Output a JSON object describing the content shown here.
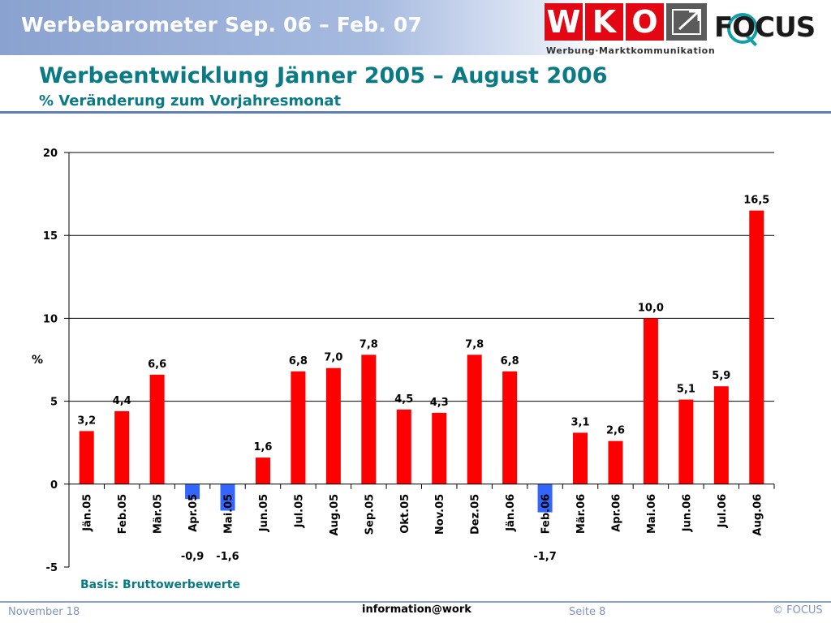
{
  "header": {
    "title": "Werbebarometer Sep. 06 – Feb. 07",
    "wko_logo_text": "WKO",
    "wko_tagline": "Werbung·Marktkommunikation",
    "focus_logo_text": "FOCUS"
  },
  "colors": {
    "positive": "#ff0000",
    "negative": "#3366ff",
    "title": "#0a7a85",
    "header_band": "#8aa2cf"
  },
  "chart_data": {
    "type": "bar",
    "title": "Werbeentwicklung Jänner 2005 – August 2006",
    "subtitle": "% Veränderung zum Vorjahresmonat",
    "ylabel": "%",
    "xlabel": "",
    "ylim": [
      -5,
      20
    ],
    "yticks": [
      -5,
      0,
      5,
      10,
      15,
      20
    ],
    "grid": true,
    "categories": [
      "Jän.05",
      "Feb.05",
      "Mär.05",
      "Apr.05",
      "Mai.05",
      "Jun.05",
      "Jul.05",
      "Aug.05",
      "Sep.05",
      "Okt.05",
      "Nov.05",
      "Dez.05",
      "Jän.06",
      "Feb.06",
      "Mär.06",
      "Apr.06",
      "Mai.06",
      "Jun.06",
      "Jul.06",
      "Aug.06"
    ],
    "values": [
      3.2,
      4.4,
      6.6,
      -0.9,
      -1.6,
      1.6,
      6.8,
      7.0,
      7.8,
      4.5,
      4.3,
      7.8,
      6.8,
      -1.7,
      3.1,
      2.6,
      10.0,
      5.1,
      5.9,
      16.5
    ],
    "labels": [
      "3,2",
      "4,4",
      "6,6",
      "-0,9",
      "-1,6",
      "1,6",
      "6,8",
      "7,0",
      "7,8",
      "4,5",
      "4,3",
      "7,8",
      "6,8",
      "-1,7",
      "3,1",
      "2,6",
      "10,0",
      "5,1",
      "5,9",
      "16,5"
    ]
  },
  "footnote": "Basis: Bruttowerbewerte",
  "footer": {
    "date": "November 18",
    "center": "information@work",
    "page": "Seite 8",
    "copyright": "© FOCUS"
  }
}
